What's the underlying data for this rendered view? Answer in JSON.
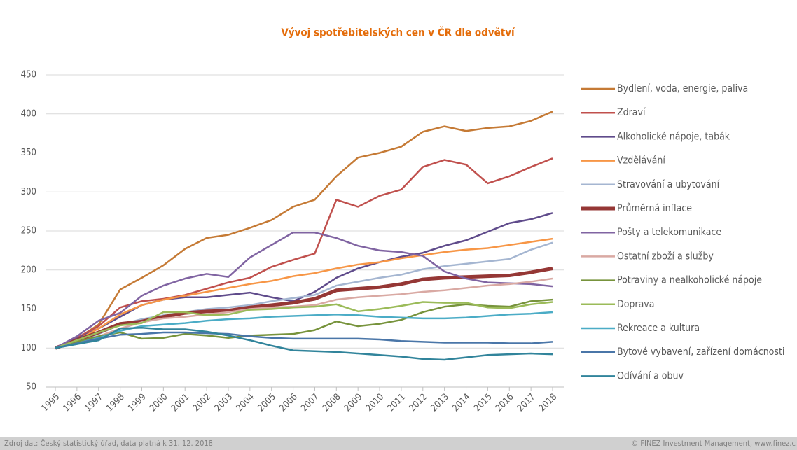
{
  "chart_data": {
    "type": "line",
    "title": "Vývoj spotřebitelských cen v ČR dle odvětví",
    "categories": [
      "1995",
      "1996",
      "1997",
      "1998",
      "1999",
      "2000",
      "2001",
      "2002",
      "2003",
      "2004",
      "2005",
      "2006",
      "2007",
      "2008",
      "2009",
      "2010",
      "2011",
      "2012",
      "2013",
      "2014",
      "2015",
      "2016",
      "2017",
      "2018"
    ],
    "ylim": [
      50,
      450
    ],
    "yticks": [
      50,
      100,
      150,
      200,
      250,
      300,
      350,
      400,
      450
    ],
    "grid": true,
    "legend": "right",
    "series": [
      {
        "name": "Bydlení, voda, energie, paliva",
        "color": "#c57a35",
        "values": [
          100,
          112,
          130,
          175,
          190,
          206,
          227,
          241,
          245,
          254,
          264,
          281,
          290,
          320,
          344,
          350,
          358,
          377,
          384,
          378,
          382,
          384,
          391,
          403
        ]
      },
      {
        "name": "Zdraví",
        "color": "#c0504d",
        "values": [
          100,
          113,
          128,
          152,
          160,
          163,
          168,
          176,
          184,
          190,
          204,
          213,
          221,
          290,
          281,
          295,
          303,
          332,
          341,
          335,
          311,
          320,
          332,
          343
        ]
      },
      {
        "name": "Alkoholické nápoje, tabák",
        "color": "#5f4b8b",
        "values": [
          100,
          112,
          125,
          140,
          155,
          162,
          165,
          165,
          168,
          171,
          165,
          160,
          172,
          190,
          202,
          210,
          217,
          222,
          231,
          238,
          249,
          260,
          265,
          273
        ]
      },
      {
        "name": "Vzdělávání",
        "color": "#f79646",
        "values": [
          100,
          110,
          125,
          143,
          155,
          162,
          167,
          172,
          177,
          182,
          186,
          192,
          196,
          202,
          207,
          210,
          215,
          219,
          223,
          226,
          228,
          232,
          236,
          240
        ]
      },
      {
        "name": "Stravování a ubytování",
        "color": "#a5b6d1",
        "values": [
          100,
          108,
          118,
          130,
          137,
          142,
          146,
          150,
          152,
          155,
          160,
          164,
          168,
          180,
          185,
          190,
          194,
          201,
          205,
          208,
          211,
          214,
          226,
          235
        ]
      },
      {
        "name": "Průměrná inflace",
        "color": "#953735",
        "values": [
          100,
          110,
          120,
          131,
          134,
          140,
          145,
          147,
          148,
          152,
          155,
          158,
          163,
          174,
          176,
          178,
          182,
          188,
          190,
          191,
          192,
          193,
          197,
          202
        ]
      },
      {
        "name": "Pošty a telekomunikace",
        "color": "#8064a2",
        "values": [
          100,
          115,
          135,
          145,
          167,
          180,
          189,
          195,
          191,
          216,
          232,
          248,
          248,
          241,
          231,
          225,
          223,
          218,
          198,
          189,
          184,
          183,
          182,
          179
        ]
      },
      {
        "name": "Ostatní zboží a služby",
        "color": "#d9a9a3",
        "values": [
          100,
          108,
          115,
          125,
          133,
          138,
          140,
          143,
          146,
          150,
          152,
          153,
          155,
          162,
          165,
          167,
          169,
          172,
          174,
          177,
          180,
          182,
          185,
          189
        ]
      },
      {
        "name": "Potraviny a nealkoholické nápoje",
        "color": "#77933c",
        "values": [
          100,
          108,
          115,
          120,
          112,
          113,
          118,
          116,
          113,
          116,
          117,
          118,
          123,
          134,
          128,
          131,
          136,
          146,
          153,
          156,
          154,
          153,
          160,
          162
        ]
      },
      {
        "name": "Doprava",
        "color": "#9bbb59",
        "values": [
          100,
          110,
          120,
          129,
          132,
          146,
          146,
          142,
          143,
          149,
          150,
          152,
          153,
          156,
          147,
          150,
          154,
          159,
          158,
          158,
          152,
          151,
          156,
          159
        ]
      },
      {
        "name": "Rekreace a kultura",
        "color": "#4bacc6",
        "values": [
          100,
          106,
          113,
          122,
          128,
          130,
          132,
          135,
          137,
          138,
          140,
          141,
          142,
          143,
          142,
          140,
          139,
          138,
          138,
          139,
          141,
          143,
          144,
          146
        ]
      },
      {
        "name": "Bytové vybavení, zařízení domácnosti",
        "color": "#4a76a8",
        "values": [
          100,
          106,
          112,
          117,
          118,
          120,
          120,
          119,
          118,
          115,
          113,
          112,
          112,
          112,
          112,
          111,
          109,
          108,
          107,
          107,
          107,
          106,
          106,
          108
        ]
      },
      {
        "name": "Odívání a obuv",
        "color": "#31849b",
        "values": [
          100,
          105,
          110,
          125,
          126,
          124,
          124,
          121,
          116,
          110,
          103,
          97,
          96,
          95,
          93,
          91,
          89,
          86,
          85,
          88,
          91,
          92,
          93,
          92
        ]
      }
    ],
    "source": "Zdroj dat: Český statistický úřad, data platná k 31. 12. 2018",
    "copyright": "© FINEZ Investment Management, www.finez.c"
  }
}
